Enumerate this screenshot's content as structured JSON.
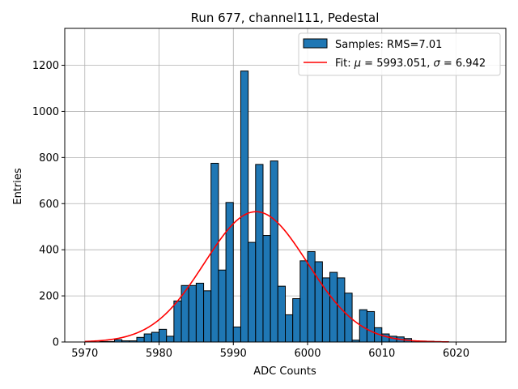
{
  "chart_data": {
    "type": "bar",
    "title": "Run 677, channel111, Pedestal",
    "xlabel": "ADC Counts",
    "ylabel": "Entries",
    "xlim": [
      5967.3,
      6026.7
    ],
    "ylim": [
      0,
      1360
    ],
    "xticks": [
      5970,
      5980,
      5990,
      6000,
      6010,
      6020
    ],
    "yticks": [
      0,
      200,
      400,
      600,
      800,
      1000,
      1200
    ],
    "grid": true,
    "legend_position": "top-right",
    "bar_color": "#1f77b4",
    "fit_color": "#ff0000",
    "bin_width": 1,
    "bins_start": 5970,
    "counts": [
      0,
      0,
      2,
      2,
      10,
      5,
      5,
      20,
      35,
      42,
      55,
      25,
      178,
      245,
      245,
      255,
      222,
      775,
      312,
      605,
      65,
      1175,
      432,
      770,
      462,
      785,
      242,
      118,
      188,
      352,
      392,
      348,
      278,
      302,
      278,
      212,
      8,
      140,
      132,
      62,
      35,
      25,
      22,
      15,
      5,
      4,
      3,
      2,
      1,
      0,
      0,
      0,
      0,
      0,
      0
    ],
    "series": [
      {
        "name": "Samples: RMS=7.01",
        "kind": "histogram"
      },
      {
        "name": "Fit: μ = 5993.051, σ = 6.942",
        "kind": "gaussian",
        "mu": 5993.051,
        "sigma": 6.942,
        "amplitude": 565,
        "x_range": [
          5970,
          6019
        ]
      }
    ],
    "legend": {
      "hist_prefix": "Samples: RMS=7.01",
      "fit_prefix": "Fit: ",
      "mu_symbol": "μ",
      "mu_text": " = 5993.051, ",
      "sigma_symbol": "σ",
      "sigma_text": " = 6.942"
    }
  }
}
